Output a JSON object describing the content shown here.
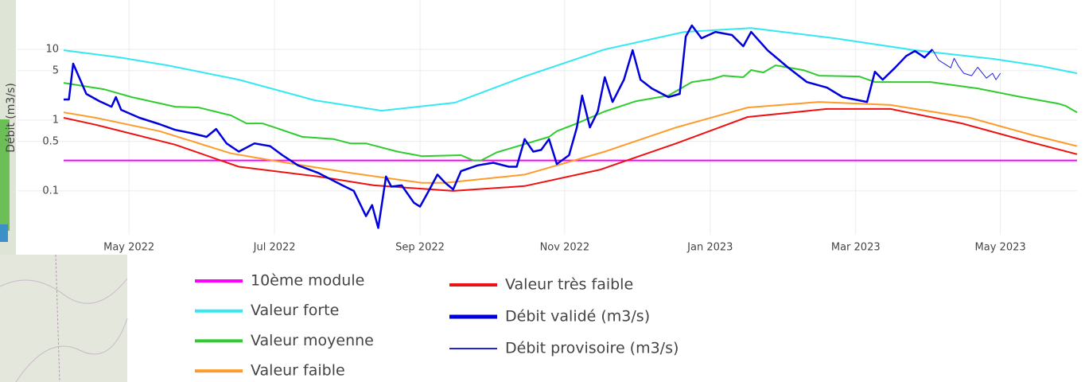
{
  "chart_data": {
    "type": "line",
    "y_label": "Débit (m3/s)",
    "ylog": true,
    "grid": true,
    "xlim": [
      2022.258,
      2023.421
    ],
    "xticks": [
      {
        "value": 2022.333,
        "label": "May 2022"
      },
      {
        "value": 2022.5,
        "label": "Jul 2022"
      },
      {
        "value": 2022.667,
        "label": "Sep 2022"
      },
      {
        "value": 2022.833,
        "label": "Nov 2022"
      },
      {
        "value": 2023.0,
        "label": "Jan 2023"
      },
      {
        "value": 2023.167,
        "label": "Mar 2023"
      },
      {
        "value": 2023.333,
        "label": "May 2023"
      }
    ],
    "ylim": [
      0.024,
      50
    ],
    "yticks": [
      0.1,
      0.5,
      1,
      5,
      10
    ],
    "series": [
      {
        "name": "10ème module",
        "color": "#ff00ff",
        "line_width": 2,
        "x": [
          2022.258,
          2023.421
        ],
        "values": [
          0.27,
          0.27
        ]
      },
      {
        "name": "Valeur forte",
        "color": "#33e8f2",
        "line_width": 2,
        "x": [
          2022.258,
          2022.322,
          2022.377,
          2022.459,
          2022.546,
          2022.623,
          2022.707,
          2022.787,
          2022.879,
          2022.97,
          2023.047,
          2023.143,
          2023.235,
          2023.326,
          2023.38,
          2023.421
        ],
        "values": [
          9.74,
          7.72,
          5.96,
          3.74,
          1.91,
          1.36,
          1.77,
          4.15,
          10,
          17.7,
          20.1,
          14.4,
          9.74,
          7.33,
          5.81,
          4.6
        ]
      },
      {
        "name": "Valeur moyenne",
        "color": "#2ecc2e",
        "line_width": 2,
        "x": [
          2022.258,
          2022.304,
          2022.336,
          2022.386,
          2022.413,
          2022.45,
          2022.468,
          2022.486,
          2022.5,
          2022.532,
          2022.568,
          2022.587,
          2022.605,
          2022.641,
          2022.669,
          2022.714,
          2022.728,
          2022.737,
          2022.755,
          2022.815,
          2022.824,
          2022.847,
          2022.879,
          2022.915,
          2022.952,
          2022.979,
          2023.002,
          2023.015,
          2023.038,
          2023.047,
          2023.061,
          2023.075,
          2023.107,
          2023.125,
          2023.171,
          2023.189,
          2023.253,
          2023.307,
          2023.353,
          2023.399,
          2023.408,
          2023.421
        ],
        "values": [
          3.37,
          2.74,
          2.12,
          1.55,
          1.51,
          1.17,
          0.9,
          0.9,
          0.79,
          0.58,
          0.54,
          0.47,
          0.47,
          0.36,
          0.31,
          0.32,
          0.27,
          0.27,
          0.35,
          0.58,
          0.7,
          0.9,
          1.33,
          1.86,
          2.23,
          3.46,
          3.8,
          4.26,
          4.05,
          5.11,
          4.72,
          5.96,
          5.1,
          4.26,
          4.15,
          3.46,
          3.46,
          2.81,
          2.17,
          1.72,
          1.59,
          1.29
        ]
      },
      {
        "name": "Valeur faible",
        "color": "#ff9b2a",
        "line_width": 2,
        "x": [
          2022.258,
          2022.295,
          2022.368,
          2022.45,
          2022.505,
          2022.587,
          2022.669,
          2022.696,
          2022.787,
          2022.879,
          2022.961,
          2023.043,
          2023.125,
          2023.207,
          2023.298,
          2023.371,
          2023.421
        ],
        "values": [
          1.29,
          1.08,
          0.7,
          0.34,
          0.26,
          0.18,
          0.13,
          0.13,
          0.17,
          0.36,
          0.79,
          1.51,
          1.81,
          1.64,
          1.08,
          0.61,
          0.43
        ]
      },
      {
        "name": "Valeur très faible",
        "color": "#ee1111",
        "line_width": 2,
        "x": [
          2022.258,
          2022.295,
          2022.386,
          2022.459,
          2022.55,
          2022.614,
          2022.705,
          2022.787,
          2022.874,
          2022.961,
          2023.043,
          2023.134,
          2023.207,
          2023.289,
          2023.362,
          2023.421
        ],
        "values": [
          1.08,
          0.86,
          0.45,
          0.22,
          0.16,
          0.12,
          0.1,
          0.117,
          0.2,
          0.47,
          1.11,
          1.44,
          1.44,
          0.9,
          0.51,
          0.33
        ]
      },
      {
        "name": "Débit validé (m3/s)",
        "color": "#0000dd",
        "line_width": 2.5,
        "x": [
          2022.258,
          2022.264,
          2022.269,
          2022.275,
          2022.284,
          2022.299,
          2022.313,
          2022.318,
          2022.324,
          2022.345,
          2022.368,
          2022.386,
          2022.404,
          2022.422,
          2022.433,
          2022.445,
          2022.459,
          2022.477,
          2022.495,
          2022.509,
          2022.527,
          2022.55,
          2022.578,
          2022.591,
          2022.605,
          2022.612,
          2022.619,
          2022.628,
          2022.634,
          2022.646,
          2022.66,
          2022.667,
          2022.676,
          2022.687,
          2022.696,
          2022.705,
          2022.714,
          2022.733,
          2022.751,
          2022.769,
          2022.778,
          2022.787,
          2022.797,
          2022.806,
          2022.815,
          2022.824,
          2022.838,
          2022.847,
          2022.853,
          2022.862,
          2022.871,
          2022.879,
          2022.888,
          2022.901,
          2022.911,
          2022.92,
          2022.933,
          2022.952,
          2022.965,
          2022.972,
          2022.979,
          2022.99,
          2023.006,
          2023.025,
          2023.038,
          2023.047,
          2023.066,
          2023.089,
          2023.111,
          2023.134,
          2023.152,
          2023.18,
          2023.189,
          2023.198,
          2023.212,
          2023.225,
          2023.235,
          2023.246,
          2023.255
        ],
        "values": [
          1.96,
          1.96,
          6.3,
          4.26,
          2.35,
          1.86,
          1.55,
          2.12,
          1.4,
          1.08,
          0.88,
          0.73,
          0.66,
          0.58,
          0.75,
          0.47,
          0.36,
          0.47,
          0.43,
          0.32,
          0.23,
          0.18,
          0.12,
          0.1,
          0.044,
          0.063,
          0.03,
          0.16,
          0.115,
          0.12,
          0.068,
          0.06,
          0.095,
          0.17,
          0.13,
          0.105,
          0.19,
          0.23,
          0.25,
          0.22,
          0.22,
          0.54,
          0.36,
          0.38,
          0.54,
          0.24,
          0.32,
          0.79,
          2.23,
          0.79,
          1.33,
          4.05,
          1.81,
          3.74,
          9.74,
          3.74,
          2.81,
          2.12,
          2.35,
          15.2,
          21.8,
          14.4,
          17.7,
          16.0,
          11.1,
          17.7,
          9.7,
          5.6,
          3.46,
          2.89,
          2.12,
          1.81,
          4.85,
          3.74,
          5.5,
          8.1,
          9.5,
          7.7,
          10
        ]
      },
      {
        "name": "Débit provisoire (m3/s)",
        "color": "#2222dd",
        "line_width": 1,
        "x": [
          2023.255,
          2023.262,
          2023.276,
          2023.28,
          2023.285,
          2023.291,
          2023.3,
          2023.307,
          2023.317,
          2023.324,
          2023.328,
          2023.333
        ],
        "values": [
          10,
          7.1,
          5.5,
          7.5,
          5.8,
          4.6,
          4.26,
          5.6,
          3.93,
          4.6,
          3.74,
          4.6
        ]
      }
    ]
  }
}
